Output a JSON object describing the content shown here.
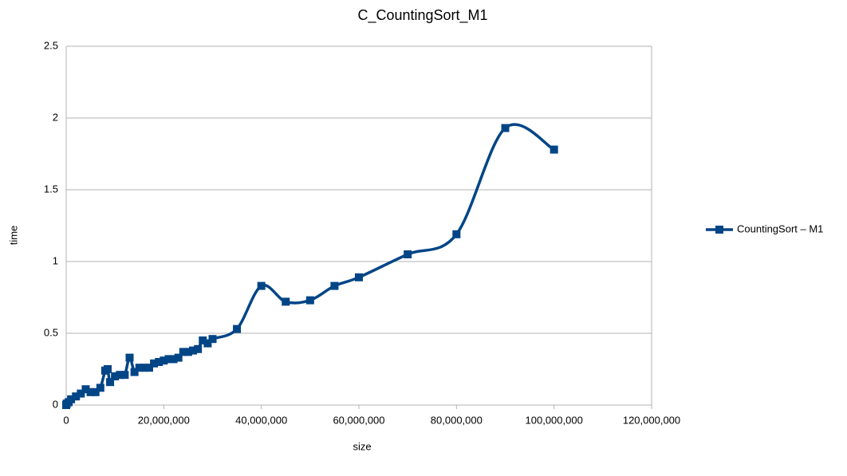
{
  "chart_data": {
    "type": "scatter",
    "title": "C_CountingSort_M1",
    "x_label": "size",
    "y_label": "time",
    "x": [
      0,
      100000,
      500000,
      1000000,
      2000000,
      3000000,
      4000000,
      5000000,
      6000000,
      7000000,
      8000000,
      8500000,
      9000000,
      10000000,
      11000000,
      12000000,
      13000000,
      14000000,
      15000000,
      16000000,
      17000000,
      18000000,
      19000000,
      20000000,
      21000000,
      22000000,
      23000000,
      24000000,
      25000000,
      26000000,
      27000000,
      28000000,
      29000000,
      30000000,
      35000000,
      40000000,
      45000000,
      50000000,
      55000000,
      60000000,
      70000000,
      80000000,
      90000000,
      100000000
    ],
    "series": [
      {
        "name": "CountingSort – M1",
        "color": "#004586",
        "values": [
          0,
          0.01,
          0.02,
          0.04,
          0.06,
          0.08,
          0.11,
          0.09,
          0.09,
          0.12,
          0.24,
          0.25,
          0.16,
          0.2,
          0.21,
          0.21,
          0.33,
          0.23,
          0.26,
          0.26,
          0.26,
          0.29,
          0.3,
          0.31,
          0.32,
          0.32,
          0.33,
          0.37,
          0.37,
          0.38,
          0.39,
          0.45,
          0.43,
          0.46,
          0.53,
          0.83,
          0.72,
          0.73,
          0.83,
          0.89,
          1.05,
          1.19,
          1.93,
          1.78
        ]
      }
    ],
    "xlim": [
      0,
      120000000
    ],
    "xticks": [
      0,
      {
        "value": 20000000,
        "label": "20,000,000"
      },
      {
        "value": 40000000,
        "label": "40,000,000"
      },
      {
        "value": 60000000,
        "label": "60,000,000"
      },
      {
        "value": 80000000,
        "label": "80,000,000"
      },
      {
        "value": 100000000,
        "label": "100,000,000"
      },
      {
        "value": 120000000,
        "label": "120,000,000"
      }
    ],
    "ylim": [
      0,
      2.5
    ],
    "yticks": [
      0,
      0.5,
      1,
      1.5,
      2,
      2.5
    ],
    "grid": true,
    "legend": "right"
  }
}
